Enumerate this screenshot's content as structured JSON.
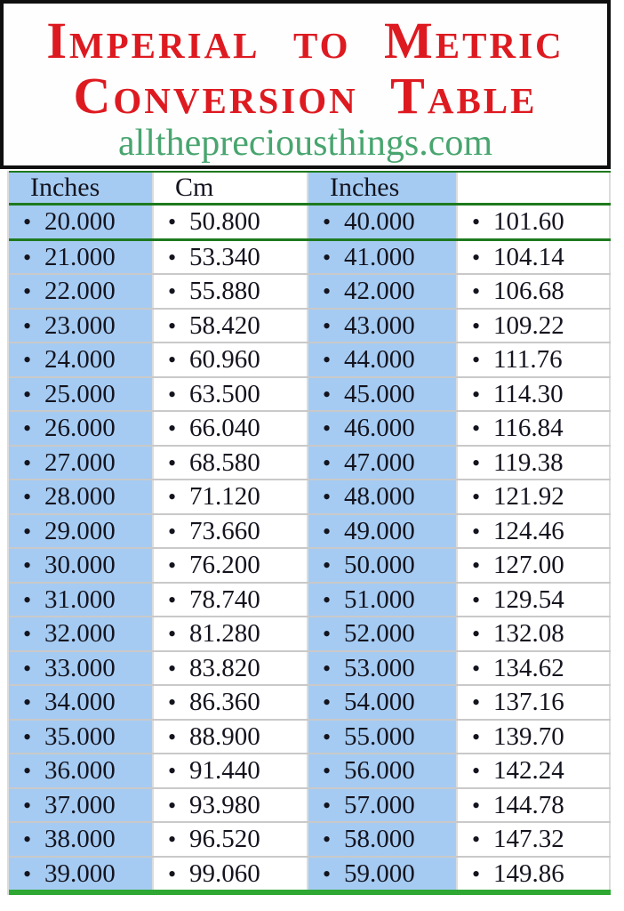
{
  "header": {
    "title_line1": "Imperial to Metric",
    "title_line2": "Conversion Table",
    "website": "allthepreciousthings.com"
  },
  "table": {
    "headers": [
      "Inches",
      "Cm",
      "Inches",
      ""
    ],
    "bullet_glyph": "•"
  },
  "chart_data": {
    "type": "table",
    "title": "Imperial to Metric Conversion Table",
    "columns": [
      "Inches",
      "Cm",
      "Inches",
      ""
    ],
    "rows": [
      [
        "20.000",
        "50.800",
        "40.000",
        "101.60"
      ],
      [
        "21.000",
        "53.340",
        "41.000",
        "104.14"
      ],
      [
        "22.000",
        "55.880",
        "42.000",
        "106.68"
      ],
      [
        "23.000",
        "58.420",
        "43.000",
        "109.22"
      ],
      [
        "24.000",
        "60.960",
        "44.000",
        "111.76"
      ],
      [
        "25.000",
        "63.500",
        "45.000",
        "114.30"
      ],
      [
        "26.000",
        "66.040",
        "46.000",
        "116.84"
      ],
      [
        "27.000",
        "68.580",
        "47.000",
        "119.38"
      ],
      [
        "28.000",
        "71.120",
        "48.000",
        "121.92"
      ],
      [
        "29.000",
        "73.660",
        "49.000",
        "124.46"
      ],
      [
        "30.000",
        "76.200",
        "50.000",
        "127.00"
      ],
      [
        "31.000",
        "78.740",
        "51.000",
        "129.54"
      ],
      [
        "32.000",
        "81.280",
        "52.000",
        "132.08"
      ],
      [
        "33.000",
        "83.820",
        "53.000",
        "134.62"
      ],
      [
        "34.000",
        "86.360",
        "54.000",
        "137.16"
      ],
      [
        "35.000",
        "88.900",
        "55.000",
        "139.70"
      ],
      [
        "36.000",
        "91.440",
        "56.000",
        "142.24"
      ],
      [
        "37.000",
        "93.980",
        "57.000",
        "144.78"
      ],
      [
        "38.000",
        "96.520",
        "58.000",
        "147.32"
      ],
      [
        "39.000",
        "99.060",
        "59.000",
        "149.86"
      ]
    ]
  },
  "colors": {
    "title_red": "#de1a21",
    "url_green": "#48a56f",
    "cell_blue": "#a5cbf2",
    "line_green_dark": "#1e7a1e",
    "line_green_bright": "#2ea833",
    "separator_gray": "#c9c9c9"
  }
}
